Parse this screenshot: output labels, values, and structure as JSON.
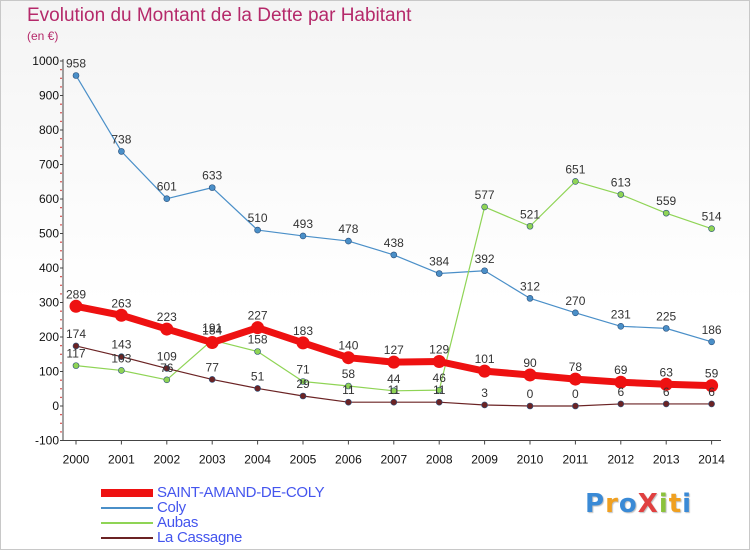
{
  "title": "Evolution du Montant de la Dette par Habitant",
  "unit": "(en €)",
  "logo": {
    "text": "ProXiti",
    "colors": [
      "#3a8ad6",
      "#f0a020",
      "#3a8ad6",
      "#e04040",
      "#8bc23c",
      "#f0a020",
      "#3a8ad6"
    ]
  },
  "chart_data": {
    "type": "line",
    "title": "Evolution du Montant de la Dette par Habitant",
    "ylabel": "(en €)",
    "x": [
      "2000",
      "2001",
      "2002",
      "2003",
      "2004",
      "2005",
      "2006",
      "2007",
      "2008",
      "2009",
      "2010",
      "2011",
      "2012",
      "2013",
      "2014"
    ],
    "yticks": [
      "1000",
      "900",
      "800",
      "700",
      "600",
      "500",
      "400",
      "300",
      "200",
      "100",
      "0",
      "-100"
    ],
    "ylim": [
      -100,
      1000
    ],
    "grid": false,
    "legend_position": "bottom-left",
    "series": [
      {
        "name": "SAINT-AMAND-DE-COLY",
        "color": "#ee1111",
        "values": [
          289,
          263,
          223,
          184,
          227,
          183,
          140,
          127,
          129,
          101,
          90,
          78,
          69,
          63,
          59
        ],
        "labels": [
          "289",
          "263",
          "223",
          "184",
          "227",
          "183",
          "140",
          "127",
          "129",
          "101",
          "90",
          "78",
          "69",
          "63",
          "59"
        ]
      },
      {
        "name": "Coly",
        "color": "#4a8fc8",
        "values": [
          958,
          738,
          601,
          633,
          510,
          493,
          478,
          438,
          384,
          392,
          312,
          270,
          231,
          225,
          186
        ],
        "labels": [
          "958",
          "738",
          "601",
          "633",
          "510",
          "493",
          "478",
          "438",
          "384",
          "392",
          "312",
          "270",
          "231",
          "225",
          "186"
        ]
      },
      {
        "name": "Aubas",
        "color": "#8fd455",
        "values": [
          117,
          103,
          76,
          191,
          158,
          71,
          58,
          44,
          46,
          577,
          521,
          651,
          613,
          559,
          514
        ],
        "labels": [
          "117",
          "103",
          "76",
          "191",
          "158",
          "71",
          "58",
          "44",
          "46",
          "577",
          "521",
          "651",
          "613",
          "559",
          "514"
        ]
      },
      {
        "name": "La Cassagne",
        "color": "#6b2324",
        "values": [
          174,
          143,
          109,
          77,
          51,
          29,
          11,
          11,
          11,
          3,
          0,
          0,
          6,
          6,
          6
        ],
        "labels": [
          "174",
          "143",
          "109",
          "77",
          "51",
          "29",
          "11",
          "11",
          "11",
          "3",
          "0",
          "0",
          "6",
          "6",
          "6"
        ]
      }
    ]
  }
}
